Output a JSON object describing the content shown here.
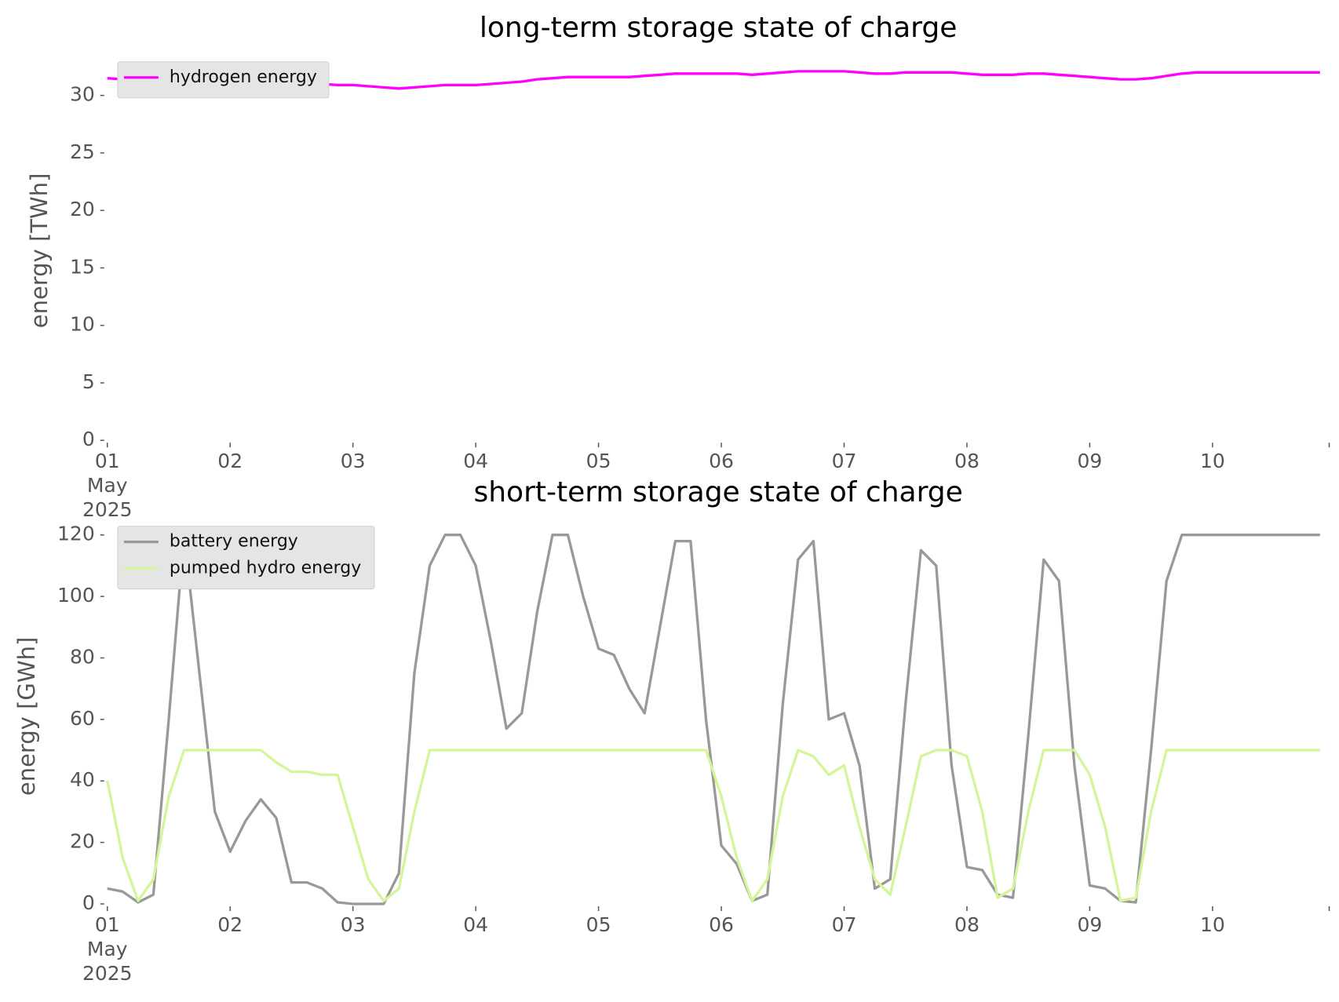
{
  "chart_data": [
    {
      "type": "line",
      "title": "long-term storage state of charge",
      "ylabel": "energy [TWh]",
      "x": [
        1,
        1.125,
        1.25,
        1.375,
        1.5,
        1.625,
        1.75,
        1.875,
        2,
        2.125,
        2.25,
        2.375,
        2.5,
        2.625,
        2.75,
        2.875,
        3,
        3.125,
        3.25,
        3.375,
        3.5,
        3.625,
        3.75,
        3.875,
        4,
        4.125,
        4.25,
        4.375,
        4.5,
        4.625,
        4.75,
        4.875,
        5,
        5.125,
        5.25,
        5.375,
        5.5,
        5.625,
        5.75,
        5.875,
        6,
        6.125,
        6.25,
        6.375,
        6.5,
        6.625,
        6.75,
        6.875,
        7,
        7.125,
        7.25,
        7.375,
        7.5,
        7.625,
        7.75,
        7.875,
        8,
        8.125,
        8.25,
        8.375,
        8.5,
        8.625,
        8.75,
        8.875,
        9,
        9.125,
        9.25,
        9.375,
        9.5,
        9.625,
        9.75,
        9.875,
        10,
        10.125,
        10.25,
        10.375,
        10.5,
        10.625,
        10.75,
        10.875
      ],
      "xlim": [
        1,
        10.95
      ],
      "xticks": [
        {
          "value": 1,
          "label": "01"
        },
        {
          "value": 2,
          "label": "02"
        },
        {
          "value": 3,
          "label": "03"
        },
        {
          "value": 4,
          "label": "04"
        },
        {
          "value": 5,
          "label": "05"
        },
        {
          "value": 6,
          "label": "06"
        },
        {
          "value": 7,
          "label": "07"
        },
        {
          "value": 8,
          "label": "08"
        },
        {
          "value": 9,
          "label": "09"
        },
        {
          "value": 10,
          "label": "10"
        }
      ],
      "xtick_sublabels": [
        "May",
        "2025"
      ],
      "ylim": [
        0,
        33
      ],
      "yticks": [
        0,
        5,
        10,
        15,
        20,
        25,
        30
      ],
      "legend": "upper left",
      "series": [
        {
          "name": "hydrogen energy",
          "color": "#ff00ff",
          "values": [
            31.5,
            31.4,
            31.4,
            31.4,
            31.4,
            31.4,
            31.3,
            31.3,
            31.3,
            31.2,
            31.2,
            31.1,
            31.1,
            31.0,
            31.0,
            30.9,
            30.9,
            30.8,
            30.7,
            30.6,
            30.7,
            30.8,
            30.9,
            30.9,
            30.9,
            31.0,
            31.1,
            31.2,
            31.4,
            31.5,
            31.6,
            31.6,
            31.6,
            31.6,
            31.6,
            31.7,
            31.8,
            31.9,
            31.9,
            31.9,
            31.9,
            31.9,
            31.8,
            31.9,
            32.0,
            32.1,
            32.1,
            32.1,
            32.1,
            32.0,
            31.9,
            31.9,
            32.0,
            32.0,
            32.0,
            32.0,
            31.9,
            31.8,
            31.8,
            31.8,
            31.9,
            31.9,
            31.8,
            31.7,
            31.6,
            31.5,
            31.4,
            31.4,
            31.5,
            31.7,
            31.9,
            32.0,
            32.0,
            32.0,
            32.0,
            32.0,
            32.0,
            32.0,
            32.0,
            32.0
          ]
        }
      ]
    },
    {
      "type": "line",
      "title": "short-term storage state of charge",
      "ylabel": "energy [GWh]",
      "x": [
        1,
        1.125,
        1.25,
        1.375,
        1.5,
        1.625,
        1.75,
        1.875,
        2,
        2.125,
        2.25,
        2.375,
        2.5,
        2.625,
        2.75,
        2.875,
        3,
        3.125,
        3.25,
        3.375,
        3.5,
        3.625,
        3.75,
        3.875,
        4,
        4.125,
        4.25,
        4.375,
        4.5,
        4.625,
        4.75,
        4.875,
        5,
        5.125,
        5.25,
        5.375,
        5.5,
        5.625,
        5.75,
        5.875,
        6,
        6.125,
        6.25,
        6.375,
        6.5,
        6.625,
        6.75,
        6.875,
        7,
        7.125,
        7.25,
        7.375,
        7.5,
        7.625,
        7.75,
        7.875,
        8,
        8.125,
        8.25,
        8.375,
        8.5,
        8.625,
        8.75,
        8.875,
        9,
        9.125,
        9.25,
        9.375,
        9.5,
        9.625,
        9.75,
        9.875,
        10,
        10.125,
        10.25,
        10.375,
        10.5,
        10.625,
        10.75,
        10.875
      ],
      "xlim": [
        1,
        10.95
      ],
      "xticks": [
        {
          "value": 1,
          "label": "01"
        },
        {
          "value": 2,
          "label": "02"
        },
        {
          "value": 3,
          "label": "03"
        },
        {
          "value": 4,
          "label": "04"
        },
        {
          "value": 5,
          "label": "05"
        },
        {
          "value": 6,
          "label": "06"
        },
        {
          "value": 7,
          "label": "07"
        },
        {
          "value": 8,
          "label": "08"
        },
        {
          "value": 9,
          "label": "09"
        },
        {
          "value": 10,
          "label": "10"
        }
      ],
      "xtick_sublabels": [
        "May",
        "2025"
      ],
      "ylim": [
        0,
        122
      ],
      "yticks": [
        0,
        20,
        40,
        60,
        80,
        100,
        120
      ],
      "legend": "upper left",
      "series": [
        {
          "name": "battery energy",
          "color": "#999999",
          "values": [
            5,
            4,
            0.5,
            3,
            60,
            120,
            75,
            30,
            17,
            27,
            34,
            28,
            7,
            7,
            5,
            0.5,
            0,
            0,
            0,
            10,
            75,
            110,
            120,
            120,
            110,
            85,
            57,
            62,
            95,
            120,
            120,
            100,
            83,
            81,
            70,
            62,
            90,
            118,
            118,
            60,
            19,
            13,
            1,
            3,
            65,
            112,
            118,
            60,
            62,
            45,
            5,
            8,
            65,
            115,
            110,
            45,
            12,
            11,
            3,
            2,
            55,
            112,
            105,
            45,
            6,
            5,
            1,
            0.5,
            50,
            105,
            120,
            120,
            120,
            120,
            120,
            120,
            120,
            120,
            120,
            120
          ]
        },
        {
          "name": "pumped hydro energy",
          "color": "#d4f59a",
          "values": [
            40,
            15,
            1,
            8,
            35,
            50,
            50,
            50,
            50,
            50,
            50,
            46,
            43,
            43,
            42,
            42,
            25,
            8,
            1,
            5,
            30,
            50,
            50,
            50,
            50,
            50,
            50,
            50,
            50,
            50,
            50,
            50,
            50,
            50,
            50,
            50,
            50,
            50,
            50,
            50,
            35,
            15,
            1,
            8,
            35,
            50,
            48,
            42,
            45,
            25,
            8,
            3,
            25,
            48,
            50,
            50,
            48,
            30,
            2,
            5,
            30,
            50,
            50,
            50,
            42,
            25,
            1,
            2,
            30,
            50,
            50,
            50,
            50,
            50,
            50,
            50,
            50,
            50,
            50,
            50
          ]
        }
      ]
    }
  ]
}
